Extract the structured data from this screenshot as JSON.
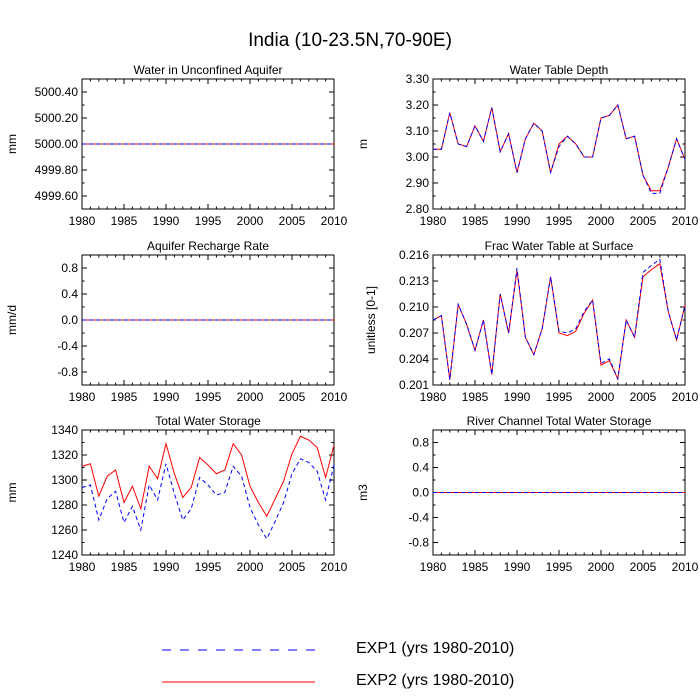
{
  "page": {
    "title": "India (10-23.5N,70-90E)"
  },
  "legend": {
    "items": [
      {
        "label": "EXP1 (yrs 1980-2010)",
        "color": "#0000ff",
        "style": "dashed"
      },
      {
        "label": "EXP2 (yrs 1980-2010)",
        "color": "#ff0000",
        "style": "solid"
      }
    ]
  },
  "chart_data": [
    {
      "type": "line",
      "title": "Water in Unconfined Aquifer",
      "xlabel": "",
      "ylabel": "mm",
      "xlim": [
        1980,
        2010
      ],
      "ylim": [
        4999.5,
        5000.5
      ],
      "xticks": [
        1980,
        1985,
        1990,
        1995,
        2000,
        2005,
        2010
      ],
      "yticks": [
        4999.6,
        4999.8,
        5000.0,
        5000.2,
        5000.4
      ],
      "ytick_labels": [
        "4999.60",
        "4999.80",
        "5000.00",
        "5000.20",
        "5000.40"
      ],
      "x": [
        1980,
        2010
      ],
      "series": [
        {
          "name": "EXP1 (yrs 1980-2010)",
          "values": [
            5000.0,
            5000.0
          ]
        },
        {
          "name": "EXP2 (yrs 1980-2010)",
          "values": [
            5000.0,
            5000.0
          ]
        }
      ]
    },
    {
      "type": "line",
      "title": "Water Table Depth",
      "xlabel": "",
      "ylabel": "m",
      "xlim": [
        1980,
        2010
      ],
      "ylim": [
        2.8,
        3.3
      ],
      "xticks": [
        1980,
        1985,
        1990,
        1995,
        2000,
        2005,
        2010
      ],
      "yticks": [
        2.8,
        2.9,
        3.0,
        3.1,
        3.2,
        3.3
      ],
      "ytick_labels": [
        "2.80",
        "2.90",
        "3.00",
        "3.10",
        "3.20",
        "3.30"
      ],
      "x": [
        1980,
        1981,
        1982,
        1983,
        1984,
        1985,
        1986,
        1987,
        1988,
        1989,
        1990,
        1991,
        1992,
        1993,
        1994,
        1995,
        1996,
        1997,
        1998,
        1999,
        2000,
        2001,
        2002,
        2003,
        2004,
        2005,
        2006,
        2007,
        2008,
        2009,
        2010
      ],
      "series": [
        {
          "name": "EXP1 (yrs 1980-2010)",
          "values": [
            3.03,
            3.03,
            3.17,
            3.05,
            3.04,
            3.12,
            3.06,
            3.19,
            3.02,
            3.09,
            2.94,
            3.07,
            3.13,
            3.1,
            2.94,
            3.04,
            3.08,
            3.05,
            3.0,
            3.0,
            3.15,
            3.16,
            3.2,
            3.07,
            3.08,
            2.93,
            2.86,
            2.86,
            2.96,
            3.07,
            2.99
          ]
        },
        {
          "name": "EXP2 (yrs 1980-2010)",
          "values": [
            3.03,
            3.03,
            3.17,
            3.05,
            3.04,
            3.12,
            3.06,
            3.19,
            3.02,
            3.09,
            2.94,
            3.07,
            3.13,
            3.1,
            2.94,
            3.05,
            3.08,
            3.05,
            3.0,
            3.0,
            3.15,
            3.16,
            3.2,
            3.07,
            3.08,
            2.93,
            2.87,
            2.87,
            2.96,
            3.07,
            2.99
          ]
        }
      ]
    },
    {
      "type": "line",
      "title": "Aquifer Recharge Rate",
      "xlabel": "",
      "ylabel": "mm/d",
      "xlim": [
        1980,
        2010
      ],
      "ylim": [
        -1.0,
        1.0
      ],
      "xticks": [
        1980,
        1985,
        1990,
        1995,
        2000,
        2005,
        2010
      ],
      "yticks": [
        -0.8,
        -0.4,
        0.0,
        0.4,
        0.8
      ],
      "ytick_labels": [
        "-0.8",
        "-0.4",
        "0.0",
        "0.4",
        "0.8"
      ],
      "x": [
        1980,
        2010
      ],
      "series": [
        {
          "name": "EXP1 (yrs 1980-2010)",
          "values": [
            0.0,
            0.0
          ]
        },
        {
          "name": "EXP2 (yrs 1980-2010)",
          "values": [
            0.0,
            0.0
          ]
        }
      ]
    },
    {
      "type": "line",
      "title": "Frac Water Table at Surface",
      "xlabel": "",
      "ylabel": "unitless [0-1]",
      "xlim": [
        1980,
        2010
      ],
      "ylim": [
        0.201,
        0.216
      ],
      "xticks": [
        1980,
        1985,
        1990,
        1995,
        2000,
        2005,
        2010
      ],
      "yticks": [
        0.201,
        0.204,
        0.207,
        0.21,
        0.213,
        0.216
      ],
      "ytick_labels": [
        "0.201",
        "0.204",
        "0.207",
        "0.210",
        "0.213",
        "0.216"
      ],
      "x": [
        1980,
        1981,
        1982,
        1983,
        1984,
        1985,
        1986,
        1987,
        1988,
        1989,
        1990,
        1991,
        1992,
        1993,
        1994,
        1995,
        1996,
        1997,
        1998,
        1999,
        2000,
        2001,
        2002,
        2003,
        2004,
        2005,
        2006,
        2007,
        2008,
        2009,
        2010
      ],
      "series": [
        {
          "name": "EXP1 (yrs 1980-2010)",
          "values": [
            0.2085,
            0.209,
            0.2016,
            0.2103,
            0.208,
            0.205,
            0.2085,
            0.2022,
            0.2115,
            0.207,
            0.2145,
            0.2065,
            0.2045,
            0.2075,
            0.2135,
            0.2072,
            0.207,
            0.2075,
            0.2095,
            0.2108,
            0.2035,
            0.204,
            0.2017,
            0.2085,
            0.2065,
            0.214,
            0.2148,
            0.2155,
            0.2095,
            0.2062,
            0.2102
          ]
        },
        {
          "name": "EXP2 (yrs 1980-2010)",
          "values": [
            0.2085,
            0.209,
            0.2016,
            0.2103,
            0.208,
            0.205,
            0.2085,
            0.2022,
            0.2115,
            0.207,
            0.2142,
            0.2065,
            0.2045,
            0.2075,
            0.2135,
            0.207,
            0.2067,
            0.2072,
            0.2093,
            0.2108,
            0.2033,
            0.2038,
            0.2017,
            0.2085,
            0.2065,
            0.2135,
            0.2143,
            0.215,
            0.2095,
            0.2062,
            0.2102
          ]
        }
      ]
    },
    {
      "type": "line",
      "title": "Total Water Storage",
      "xlabel": "",
      "ylabel": "mm",
      "xlim": [
        1980,
        2010
      ],
      "ylim": [
        1240,
        1340
      ],
      "xticks": [
        1980,
        1985,
        1990,
        1995,
        2000,
        2005,
        2010
      ],
      "yticks": [
        1240,
        1260,
        1280,
        1300,
        1320,
        1340
      ],
      "ytick_labels": [
        "1240",
        "1260",
        "1280",
        "1300",
        "1320",
        "1340"
      ],
      "x": [
        1980,
        1981,
        1982,
        1983,
        1984,
        1985,
        1986,
        1987,
        1988,
        1989,
        1990,
        1991,
        1992,
        1993,
        1994,
        1995,
        1996,
        1997,
        1998,
        1999,
        2000,
        2001,
        2002,
        2003,
        2004,
        2005,
        2006,
        2007,
        2008,
        2009,
        2010
      ],
      "series": [
        {
          "name": "EXP1 (yrs 1980-2010)",
          "values": [
            1294,
            1296,
            1268,
            1285,
            1291,
            1266,
            1279,
            1260,
            1296,
            1284,
            1313,
            1289,
            1268,
            1277,
            1302,
            1296,
            1288,
            1290,
            1311,
            1303,
            1278,
            1264,
            1253,
            1267,
            1282,
            1305,
            1317,
            1314,
            1307,
            1284,
            1312
          ]
        },
        {
          "name": "EXP2 (yrs 1980-2010)",
          "values": [
            1311,
            1313,
            1287,
            1303,
            1308,
            1282,
            1295,
            1277,
            1311,
            1301,
            1329,
            1305,
            1286,
            1294,
            1318,
            1312,
            1305,
            1308,
            1329,
            1320,
            1295,
            1282,
            1271,
            1285,
            1299,
            1321,
            1335,
            1332,
            1326,
            1302,
            1328
          ]
        }
      ]
    },
    {
      "type": "line",
      "title": "River Channel Total Water Storage",
      "xlabel": "",
      "ylabel": "m3",
      "xlim": [
        1980,
        2010
      ],
      "ylim": [
        -1.0,
        1.0
      ],
      "xticks": [
        1980,
        1985,
        1990,
        1995,
        2000,
        2005,
        2010
      ],
      "yticks": [
        -0.8,
        -0.4,
        0.0,
        0.4,
        0.8
      ],
      "ytick_labels": [
        "-0.8",
        "-0.4",
        "0.0",
        "0.4",
        "0.8"
      ],
      "x": [
        1980,
        2010
      ],
      "series": [
        {
          "name": "EXP1 (yrs 1980-2010)",
          "values": [
            0.0,
            0.0
          ]
        },
        {
          "name": "EXP2 (yrs 1980-2010)",
          "values": [
            0.0,
            0.0
          ]
        }
      ]
    }
  ]
}
